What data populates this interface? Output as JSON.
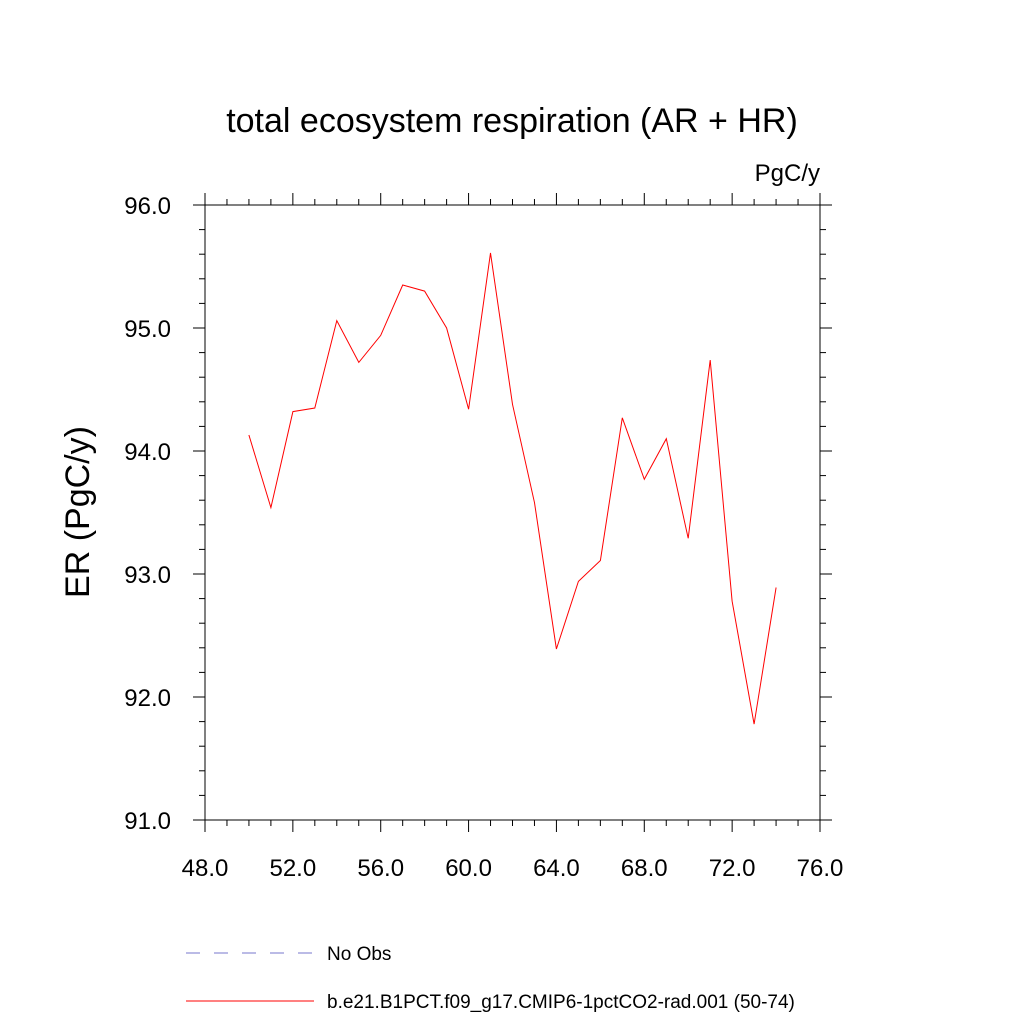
{
  "chart_data": {
    "type": "line",
    "title": "total ecosystem respiration (AR + HR)",
    "units": "PgC/y",
    "xlabel": "",
    "ylabel": "ER  (PgC/y)",
    "xlim": [
      48,
      76
    ],
    "ylim": [
      91,
      96
    ],
    "xticks": [
      "48.0",
      "52.0",
      "56.0",
      "60.0",
      "64.0",
      "68.0",
      "72.0",
      "76.0"
    ],
    "yticks": [
      "91.0",
      "92.0",
      "93.0",
      "94.0",
      "95.0",
      "96.0"
    ],
    "grid": false,
    "legend_position": "bottom",
    "series": [
      {
        "name": "b.e21.B1PCT.f09_g17.CMIP6-1pctCO2-rad.001 (50-74)",
        "color": "#ff0000",
        "style": "solid",
        "x": [
          50,
          51,
          52,
          53,
          54,
          55,
          56,
          57,
          58,
          59,
          60,
          61,
          62,
          63,
          64,
          65,
          66,
          67,
          68,
          69,
          70,
          71,
          72,
          73,
          74
        ],
        "y": [
          94.13,
          93.54,
          94.32,
          94.35,
          95.06,
          94.72,
          94.94,
          95.35,
          95.3,
          95.0,
          94.34,
          95.61,
          94.38,
          93.58,
          92.39,
          92.94,
          93.11,
          94.27,
          93.77,
          94.1,
          93.29,
          94.74,
          92.78,
          91.78,
          92.89
        ]
      },
      {
        "name": "No Obs",
        "color": "#7777cc",
        "style": "dashed",
        "x": [],
        "y": []
      }
    ]
  }
}
